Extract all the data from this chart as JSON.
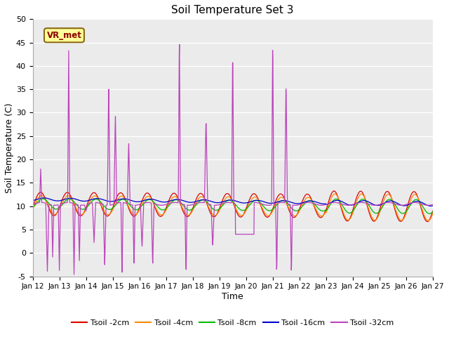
{
  "title": "Soil Temperature Set 3",
  "xlabel": "Time",
  "ylabel": "Soil Temperature (C)",
  "xlim": [
    0,
    15
  ],
  "ylim": [
    -5,
    50
  ],
  "yticks": [
    -5,
    0,
    5,
    10,
    15,
    20,
    25,
    30,
    35,
    40,
    45,
    50
  ],
  "xtick_labels": [
    "Jan 12",
    "Jan 13",
    "Jan 14",
    "Jan 15",
    "Jan 16",
    "Jan 17",
    "Jan 18",
    "Jan 19",
    "Jan 20",
    "Jan 21",
    "Jan 22",
    "Jan 23",
    "Jan 24",
    "Jan 25",
    "Jan 26",
    "Jan 27"
  ],
  "plot_bg_color": "#ebebeb",
  "fig_bg_color": "#ffffff",
  "grid_color": "#ffffff",
  "legend_label": "VR_met",
  "series_colors": {
    "Tsoil_2cm": "#dd0000",
    "Tsoil_4cm": "#ff8800",
    "Tsoil_8cm": "#00bb00",
    "Tsoil_16cm": "#0000cc",
    "Tsoil_32cm": "#bb44bb"
  },
  "legend_labels": [
    "Tsoil -2cm",
    "Tsoil -4cm",
    "Tsoil -8cm",
    "Tsoil -16cm",
    "Tsoil -32cm"
  ]
}
